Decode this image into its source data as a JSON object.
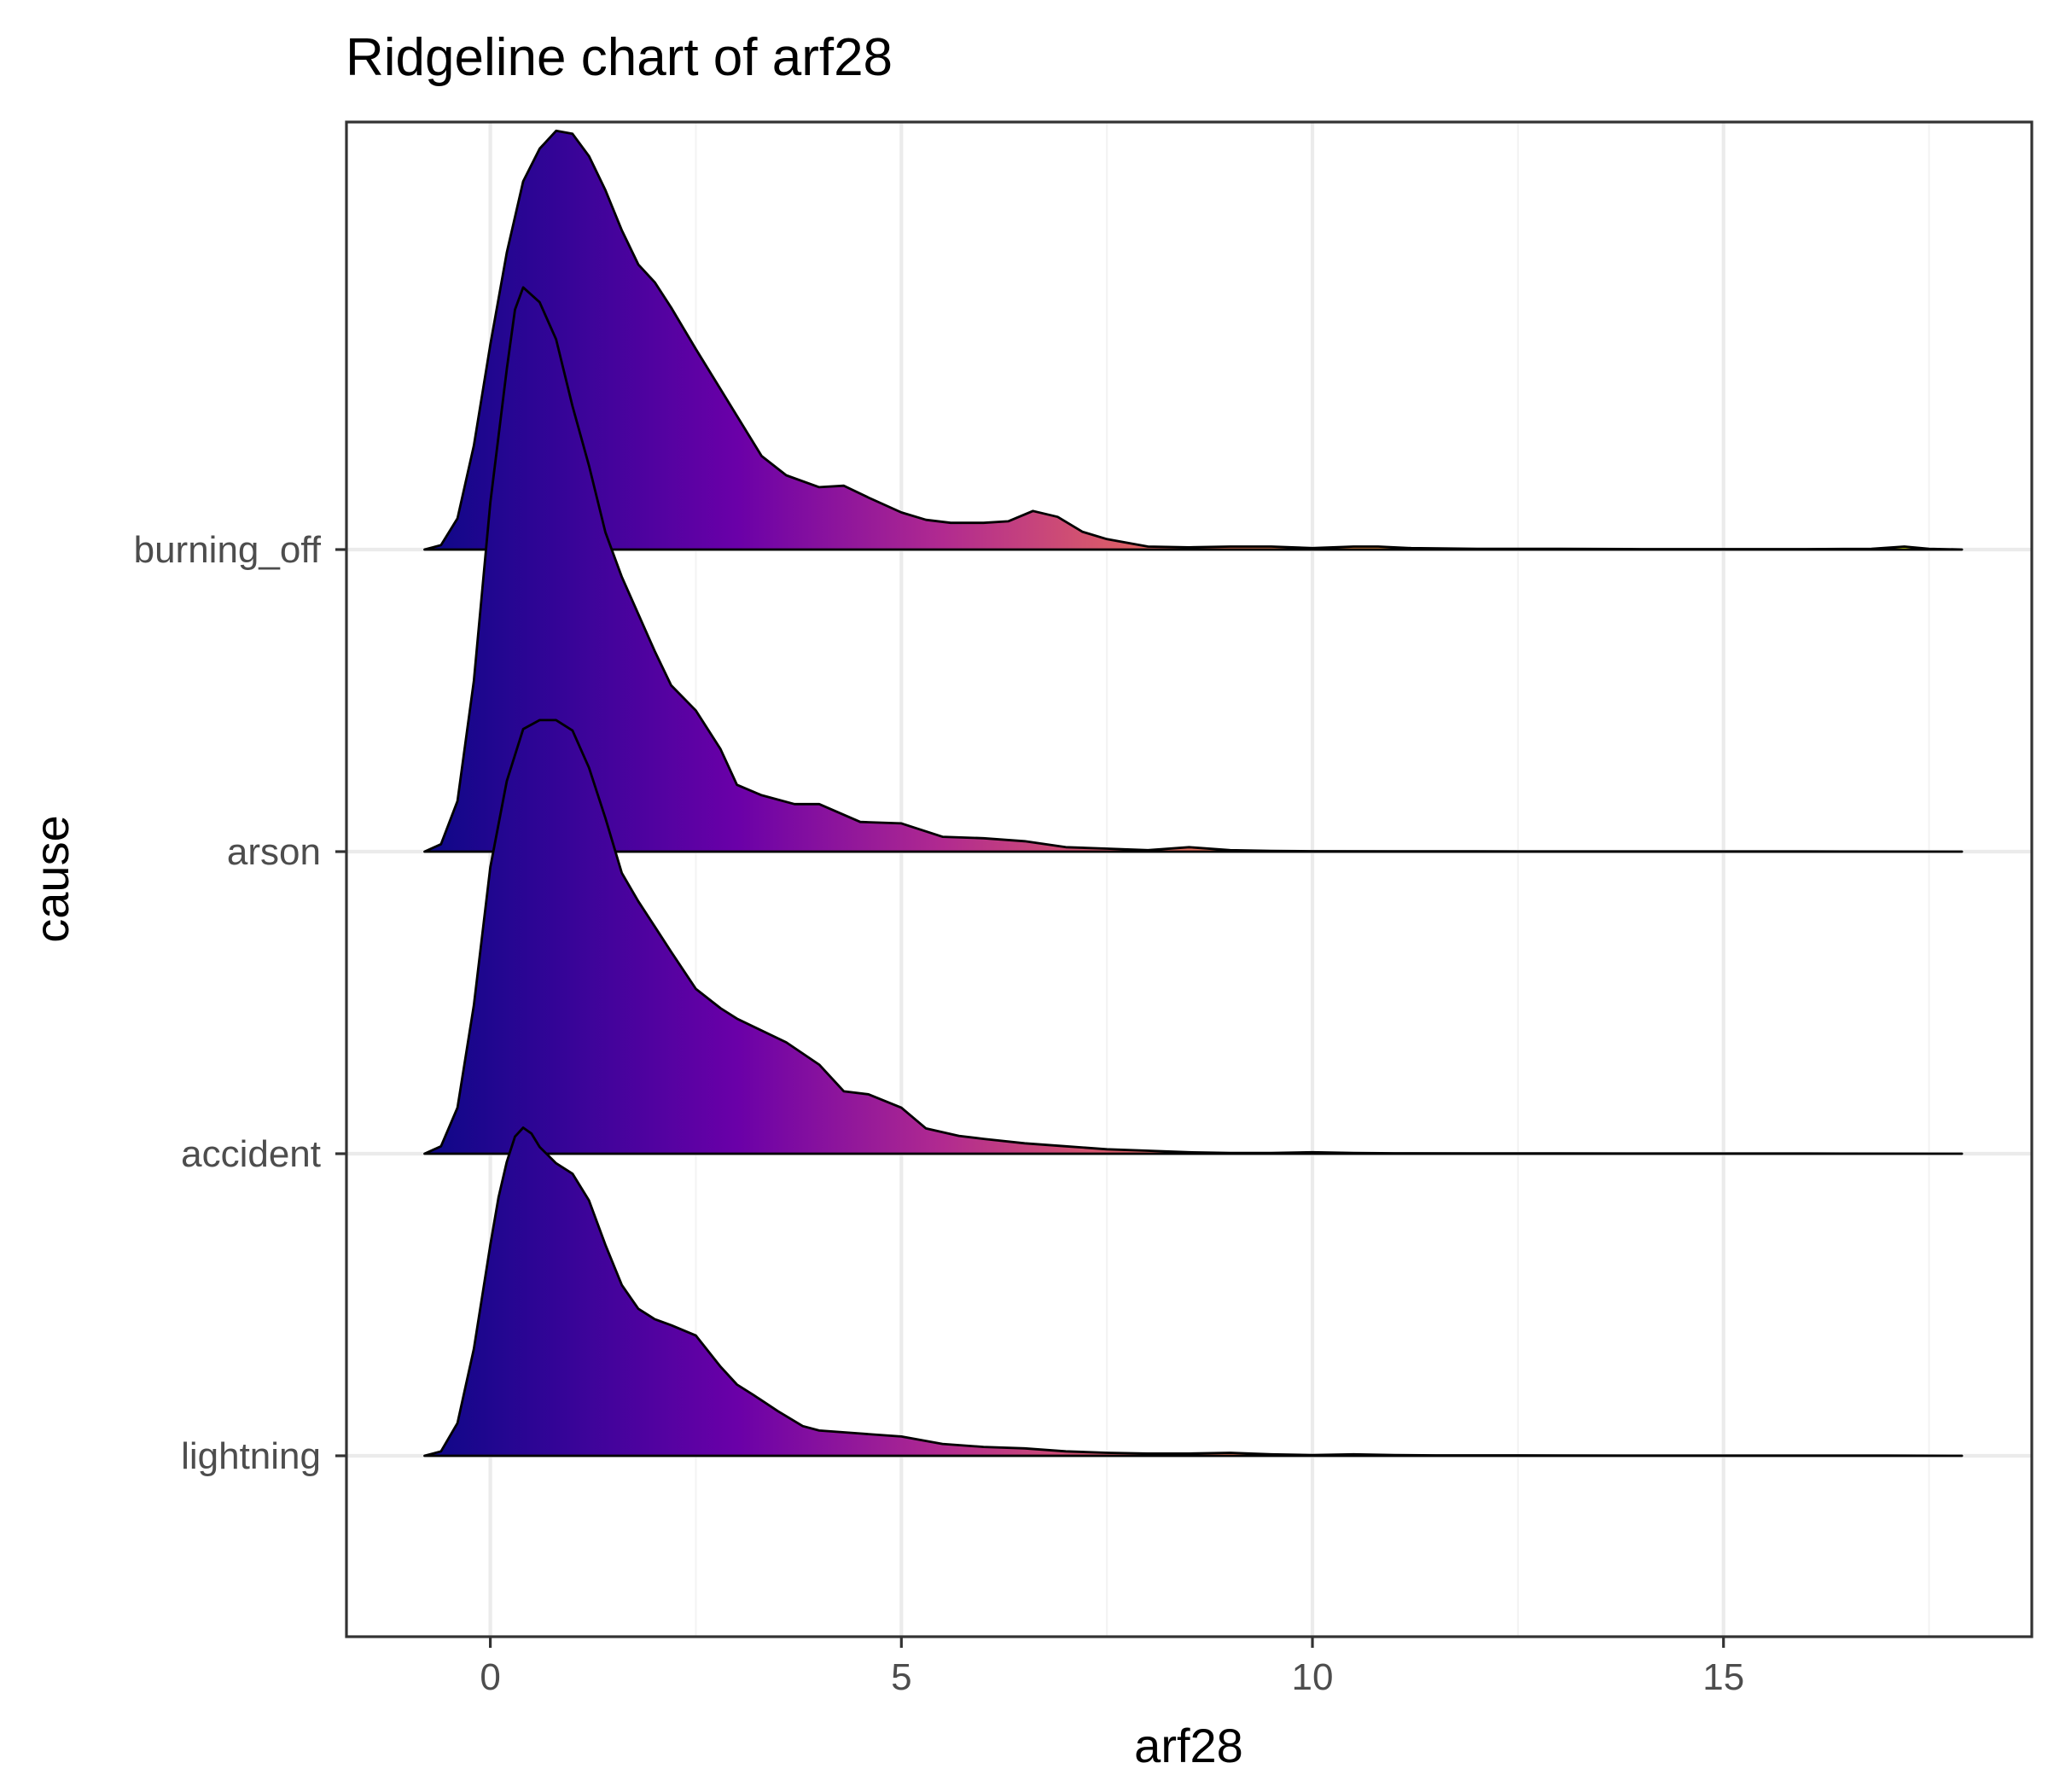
{
  "chart_data": {
    "type": "ridgeline",
    "title": "Ridgeline chart of arf28",
    "xlabel": "arf28",
    "ylabel": "cause",
    "xlim": [
      -1.75,
      18.75
    ],
    "x_ticks": [
      0,
      5,
      10,
      15
    ],
    "x_tick_labels": [
      "0",
      "5",
      "10",
      "15"
    ],
    "grid": true,
    "fill_gradient": {
      "by": "x",
      "stops": [
        {
          "x": -0.8,
          "color": "#0d0887"
        },
        {
          "x": 0.5,
          "color": "#2c0594"
        },
        {
          "x": 3.0,
          "color": "#6a00a8"
        },
        {
          "x": 5.5,
          "color": "#b12a90"
        },
        {
          "x": 8.0,
          "color": "#e16462"
        },
        {
          "x": 12.0,
          "color": "#fca636"
        },
        {
          "x": 17.0,
          "color": "#f0f921"
        }
      ]
    },
    "series": [
      {
        "name": "lightning",
        "x": [
          -0.8,
          -0.6,
          -0.4,
          -0.2,
          0.0,
          0.1,
          0.2,
          0.3,
          0.4,
          0.5,
          0.6,
          0.8,
          1.0,
          1.2,
          1.4,
          1.6,
          1.8,
          2.0,
          2.2,
          2.5,
          2.8,
          3.0,
          3.2,
          3.5,
          3.8,
          4.0,
          4.5,
          5.0,
          5.5,
          6.0,
          6.5,
          7.0,
          7.5,
          8.0,
          8.5,
          9.0,
          9.5,
          10.0,
          10.5,
          11.0,
          11.5,
          12.0,
          12.5,
          13.0,
          14.0,
          15.0,
          16.0,
          17.0,
          17.9
        ],
        "y": [
          0.0,
          0.03,
          0.22,
          0.72,
          1.42,
          1.74,
          1.98,
          2.15,
          2.21,
          2.17,
          2.08,
          1.97,
          1.9,
          1.72,
          1.42,
          1.15,
          0.99,
          0.92,
          0.88,
          0.81,
          0.6,
          0.48,
          0.41,
          0.3,
          0.2,
          0.17,
          0.15,
          0.13,
          0.08,
          0.06,
          0.05,
          0.03,
          0.02,
          0.015,
          0.015,
          0.02,
          0.01,
          0.005,
          0.01,
          0.005,
          0.003,
          0.003,
          0.003,
          0.002,
          0.001,
          0.001,
          0.001,
          0.001,
          0.0
        ]
      },
      {
        "name": "accident",
        "x": [
          -0.8,
          -0.6,
          -0.4,
          -0.2,
          0.0,
          0.2,
          0.4,
          0.6,
          0.8,
          1.0,
          1.2,
          1.4,
          1.6,
          1.8,
          2.0,
          2.2,
          2.5,
          2.8,
          3.0,
          3.3,
          3.6,
          4.0,
          4.3,
          4.6,
          5.0,
          5.3,
          5.7,
          6.0,
          6.5,
          7.0,
          7.5,
          8.0,
          8.5,
          9.0,
          9.5,
          10.0,
          10.5,
          11.0,
          12.0,
          13.0,
          14.0,
          15.0,
          16.0,
          17.9
        ],
        "y": [
          0.0,
          0.05,
          0.31,
          1.0,
          1.93,
          2.51,
          2.86,
          2.92,
          2.92,
          2.85,
          2.6,
          2.26,
          1.89,
          1.7,
          1.53,
          1.36,
          1.11,
          0.98,
          0.91,
          0.83,
          0.75,
          0.6,
          0.42,
          0.4,
          0.31,
          0.17,
          0.12,
          0.1,
          0.07,
          0.05,
          0.03,
          0.02,
          0.01,
          0.005,
          0.005,
          0.01,
          0.005,
          0.003,
          0.002,
          0.002,
          0.001,
          0.001,
          0.001,
          0.0
        ]
      },
      {
        "name": "arson",
        "x": [
          -0.8,
          -0.6,
          -0.4,
          -0.2,
          0.0,
          0.2,
          0.3,
          0.4,
          0.6,
          0.8,
          1.0,
          1.2,
          1.4,
          1.6,
          1.8,
          2.0,
          2.2,
          2.5,
          2.8,
          3.0,
          3.3,
          3.7,
          4.0,
          4.5,
          5.0,
          5.5,
          6.0,
          6.5,
          7.0,
          7.5,
          8.0,
          8.5,
          9.0,
          9.5,
          10.0,
          11.0,
          12.0,
          13.0,
          14.0,
          15.0,
          16.0,
          17.9
        ],
        "y": [
          0.0,
          0.05,
          0.34,
          1.15,
          2.35,
          3.25,
          3.65,
          3.8,
          3.7,
          3.45,
          3.0,
          2.6,
          2.15,
          1.85,
          1.6,
          1.35,
          1.12,
          0.95,
          0.69,
          0.45,
          0.38,
          0.32,
          0.32,
          0.2,
          0.19,
          0.1,
          0.09,
          0.07,
          0.03,
          0.02,
          0.01,
          0.03,
          0.01,
          0.005,
          0.003,
          0.002,
          0.002,
          0.001,
          0.001,
          0.001,
          0.001,
          0.0
        ]
      },
      {
        "name": "burning_off",
        "x": [
          -0.8,
          -0.6,
          -0.4,
          -0.2,
          0.0,
          0.2,
          0.4,
          0.6,
          0.8,
          1.0,
          1.2,
          1.4,
          1.6,
          1.8,
          2.0,
          2.2,
          2.5,
          2.8,
          3.0,
          3.3,
          3.6,
          4.0,
          4.3,
          4.6,
          5.0,
          5.3,
          5.6,
          6.0,
          6.3,
          6.6,
          6.9,
          7.2,
          7.5,
          8.0,
          8.5,
          9.0,
          9.5,
          10.0,
          10.5,
          10.8,
          11.2,
          12.0,
          13.0,
          14.0,
          15.0,
          16.0,
          16.8,
          17.2,
          17.5,
          17.9
        ],
        "y": [
          0.0,
          0.03,
          0.21,
          0.7,
          1.38,
          2.0,
          2.48,
          2.7,
          2.82,
          2.8,
          2.65,
          2.42,
          2.15,
          1.92,
          1.8,
          1.63,
          1.35,
          1.08,
          0.9,
          0.63,
          0.5,
          0.42,
          0.43,
          0.35,
          0.25,
          0.2,
          0.18,
          0.18,
          0.19,
          0.26,
          0.22,
          0.12,
          0.07,
          0.02,
          0.015,
          0.02,
          0.02,
          0.01,
          0.02,
          0.02,
          0.01,
          0.005,
          0.005,
          0.003,
          0.003,
          0.003,
          0.005,
          0.02,
          0.005,
          0.0
        ]
      }
    ]
  }
}
